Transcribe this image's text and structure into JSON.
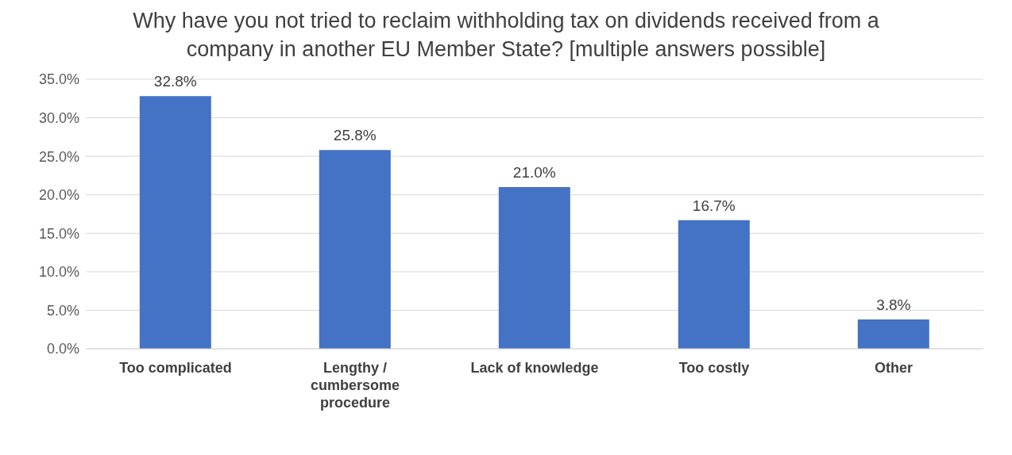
{
  "chart_data": {
    "type": "bar",
    "title": "Why have you not tried to reclaim withholding tax on dividends received from a company in another EU Member State?  [multiple answers possible]",
    "categories": [
      "Too complicated",
      "Lengthy / cumbersome procedure",
      "Lack of knowledge",
      "Too costly",
      "Other"
    ],
    "values": [
      32.8,
      25.8,
      21.0,
      16.7,
      3.8
    ],
    "value_labels": [
      "32.8%",
      "25.8%",
      "21.0%",
      "16.7%",
      "3.8%"
    ],
    "color": "#4472c4",
    "ylim": [
      0,
      35
    ],
    "yticks": [
      {
        "value": 0,
        "label": "0.0%"
      },
      {
        "value": 5,
        "label": "5.0%"
      },
      {
        "value": 10,
        "label": "10.0%"
      },
      {
        "value": 15,
        "label": "15.0%"
      },
      {
        "value": 20,
        "label": "20.0%"
      },
      {
        "value": 25,
        "label": "25.0%"
      },
      {
        "value": 30,
        "label": "30.0%"
      },
      {
        "value": 35,
        "label": "35.0%"
      }
    ],
    "grid": "y",
    "legend": false
  }
}
